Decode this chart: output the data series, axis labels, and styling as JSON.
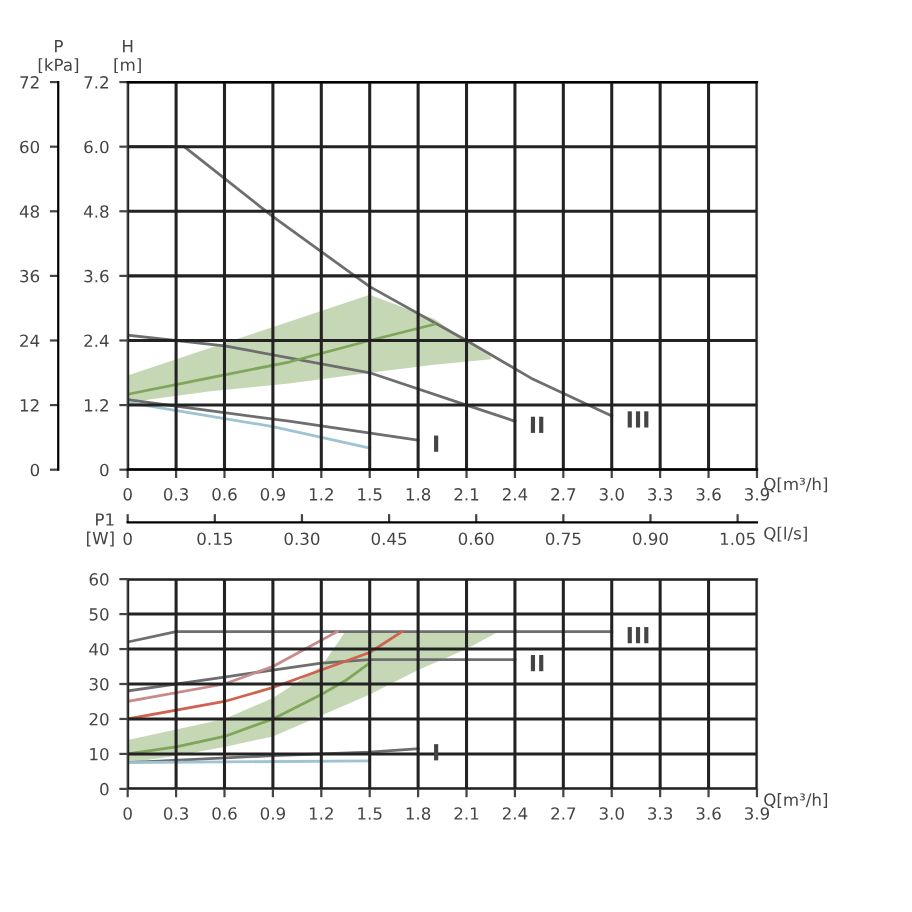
{
  "chart_data": [
    {
      "type": "line",
      "ylabel": "H\n[m]",
      "y2label": "P\n[kPa]",
      "xlabel": "Q[m³/h]",
      "xlim": [
        0,
        3.9
      ],
      "xticks": [
        0,
        0.3,
        0.6,
        0.9,
        1.2,
        1.5,
        1.8,
        2.1,
        2.4,
        2.7,
        {
          "value": 3,
          "label": "3.0"
        },
        3.3,
        3.6,
        3.9
      ],
      "ylim": [
        0,
        7.2
      ],
      "yticks": [
        0,
        1.2,
        2.4,
        3.6,
        4.8,
        {
          "value": 6,
          "label": "6.0"
        },
        7.2
      ],
      "y2lim": [
        0,
        72
      ],
      "y2ticks": [
        0,
        12,
        24,
        36,
        48,
        60,
        72
      ],
      "grid": true,
      "marker": "none",
      "line_style": "solid",
      "series": [
        {
          "color": "#6e6e6e",
          "x": [
            0,
            0.35,
            0.9,
            1.5,
            2.1,
            2.5,
            3.0
          ],
          "values": [
            6.0,
            6.0,
            4.7,
            3.4,
            2.4,
            1.7,
            1.0
          ]
        },
        {
          "color": "#6e6e6e",
          "x": [
            0,
            0.6,
            1.5,
            2.1,
            2.4
          ],
          "values": [
            2.5,
            2.3,
            1.8,
            1.2,
            0.9
          ]
        },
        {
          "color": "#6e6e6e",
          "x": [
            0,
            1.0,
            1.8
          ],
          "values": [
            1.3,
            0.9,
            0.55
          ]
        },
        {
          "color": "#9fc3d3",
          "x": [
            0,
            0.9,
            1.5
          ],
          "values": [
            1.25,
            0.8,
            0.4
          ]
        },
        {
          "color": "#7fa65a",
          "x": [
            0,
            0.5,
            1.0,
            1.5,
            1.9,
            2.25
          ],
          "values": [
            1.4,
            1.7,
            2.0,
            2.4,
            2.7,
            null
          ],
          "lower": [
            1.25,
            1.45,
            1.6,
            1.8,
            1.95,
            2.05
          ],
          "upper": [
            1.75,
            2.25,
            2.75,
            3.25,
            2.8,
            2.1
          ]
        }
      ],
      "annotations": [
        {
          "text": "I",
          "x": 1.8,
          "y": 0.55
        },
        {
          "text": "II",
          "x": 2.4,
          "y": 0.9
        },
        {
          "text": "III",
          "x": 3.0,
          "y": 1.0
        }
      ]
    },
    {
      "type": "line",
      "ylabel": "P1\n[W]",
      "xlabel": "Q[m³/h]",
      "x2label": "Q[l/s]",
      "xlim": [
        0,
        3.9
      ],
      "xticks": [
        0,
        0.3,
        0.6,
        0.9,
        1.2,
        1.5,
        1.8,
        2.1,
        2.4,
        2.7,
        {
          "value": 3,
          "label": "3.0"
        },
        3.3,
        3.6,
        3.9
      ],
      "x2lim": [
        0,
        1.0833
      ],
      "x2ticks": [
        0,
        0.15,
        {
          "value": 0.3,
          "label": "0.30"
        },
        0.45,
        {
          "value": 0.6,
          "label": "0.60"
        },
        0.75,
        {
          "value": 0.9,
          "label": "0.90"
        },
        1.05
      ],
      "ylim": [
        0,
        60
      ],
      "yticks": [
        0,
        10,
        20,
        30,
        40,
        50,
        60
      ],
      "grid": true,
      "marker": "none",
      "line_style": "solid",
      "series": [
        {
          "color": "#6e6e6e",
          "x": [
            0,
            0.3,
            3.0
          ],
          "values": [
            42,
            45,
            45
          ]
        },
        {
          "color": "#6e6e6e",
          "x": [
            0,
            0.6,
            0.9,
            1.2,
            1.5,
            2.4
          ],
          "values": [
            28,
            32,
            34,
            36,
            37,
            37
          ]
        },
        {
          "color": "#6e6e6e",
          "x": [
            0,
            0.9,
            1.5,
            1.8
          ],
          "values": [
            7.5,
            9.5,
            10.5,
            11.5
          ]
        },
        {
          "color": "#9fc3d3",
          "x": [
            0,
            1.5
          ],
          "values": [
            7.5,
            8
          ]
        },
        {
          "color": "#c98a8a",
          "x": [
            0,
            0.6,
            0.9,
            1.1,
            1.3
          ],
          "values": [
            25,
            30,
            35,
            40,
            45
          ]
        },
        {
          "color": "#d0634f",
          "x": [
            0,
            0.6,
            0.9,
            1.2,
            1.5,
            1.7
          ],
          "values": [
            20,
            25,
            29,
            34,
            39,
            45
          ]
        },
        {
          "color": "#7fa65a",
          "x": [
            0,
            0.3,
            0.6,
            0.9,
            1.2,
            1.35,
            1.5,
            1.8,
            2.1,
            2.3
          ],
          "values": [
            10,
            12,
            15,
            20,
            27,
            31,
            36,
            null,
            null,
            null
          ],
          "lower": [
            7.5,
            9.5,
            12,
            15,
            21,
            24,
            27,
            34,
            40,
            45
          ],
          "upper": [
            14,
            17,
            20,
            26,
            35,
            45,
            45,
            45,
            45,
            45
          ]
        }
      ],
      "annotations": [
        {
          "text": "I",
          "x": 1.8,
          "y": 11.5
        },
        {
          "text": "II",
          "x": 2.4,
          "y": 37
        },
        {
          "text": "III",
          "x": 3.0,
          "y": 45
        }
      ]
    }
  ]
}
